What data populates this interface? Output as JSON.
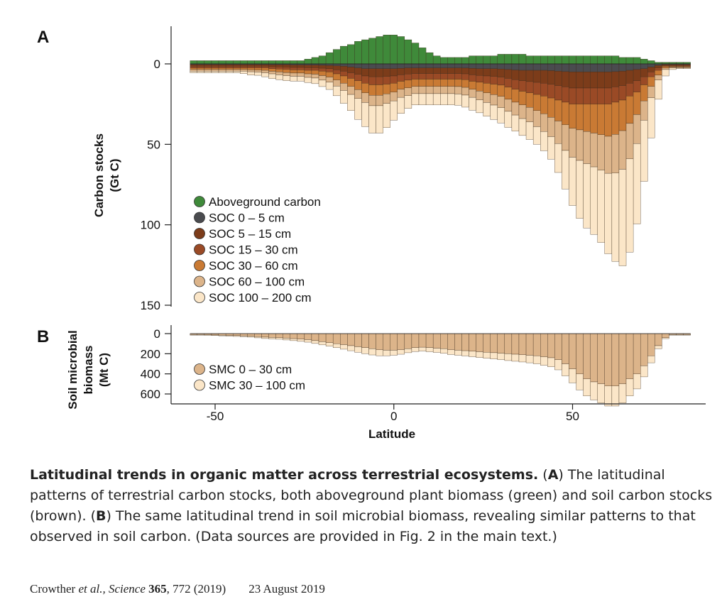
{
  "chart_data": [
    {
      "panel": "A",
      "type": "area",
      "ylabel_lines": [
        "Carbon stocks",
        "(Gt C)"
      ],
      "yticks": [
        0,
        50,
        100,
        150
      ],
      "ylim": [
        -22,
        150
      ],
      "xlim": [
        -62,
        88
      ],
      "stacking": "aboveground plotted upward from 0; soil layers stacked downward from 0, values in Gt C per latitude band",
      "x": [
        -56,
        -54,
        -52,
        -50,
        -48,
        -46,
        -44,
        -42,
        -40,
        -38,
        -36,
        -34,
        -32,
        -30,
        -28,
        -26,
        -24,
        -22,
        -20,
        -18,
        -16,
        -14,
        -12,
        -10,
        -8,
        -6,
        -4,
        -2,
        0,
        2,
        4,
        6,
        8,
        10,
        12,
        14,
        16,
        18,
        20,
        22,
        24,
        26,
        28,
        30,
        32,
        34,
        36,
        38,
        40,
        42,
        44,
        46,
        48,
        50,
        52,
        54,
        56,
        58,
        60,
        62,
        64,
        66,
        68,
        70,
        72,
        74,
        76,
        78,
        80,
        82
      ],
      "series": [
        {
          "name": "Aboveground carbon",
          "color": "#3f8a3a",
          "direction": "up",
          "values": [
            2,
            2,
            2,
            2,
            2,
            2,
            2,
            2,
            2,
            2,
            2,
            2,
            2,
            2,
            2,
            2,
            3,
            4,
            5,
            7,
            9,
            11,
            12,
            14,
            15,
            16,
            17,
            18,
            18,
            17,
            15,
            13,
            10,
            7,
            5,
            4,
            4,
            4,
            4,
            5,
            5,
            5,
            5,
            6,
            6,
            6,
            6,
            5,
            5,
            5,
            5,
            5,
            5,
            5,
            5,
            5,
            5,
            5,
            5,
            5,
            4,
            4,
            4,
            3,
            2,
            1,
            1,
            1,
            1,
            1
          ]
        },
        {
          "name": "SOC 0 – 5 cm",
          "color": "#4a4b4f",
          "direction": "down",
          "values": [
            0.5,
            0.5,
            0.5,
            0.5,
            0.5,
            0.5,
            0.5,
            0.5,
            0.5,
            0.5,
            0.5,
            0.6,
            0.6,
            0.6,
            0.7,
            0.7,
            0.8,
            0.8,
            0.9,
            1,
            1.2,
            1.5,
            2,
            2.5,
            3,
            3,
            3,
            3,
            3,
            2.8,
            2.5,
            2.5,
            2.5,
            2.5,
            2.5,
            2.5,
            2.5,
            2.5,
            2.6,
            2.8,
            3,
            3,
            3,
            3.2,
            3.5,
            3.8,
            4,
            4,
            4,
            4,
            4.2,
            4.5,
            4.8,
            5,
            5,
            5,
            5,
            5,
            5,
            4.8,
            4.5,
            4,
            3.5,
            3,
            2,
            1,
            0.5,
            0.5,
            0.5,
            0.5
          ]
        },
        {
          "name": "SOC 5 – 15 cm",
          "color": "#7c3c1a",
          "direction": "down",
          "values": [
            1,
            1,
            1,
            1,
            1,
            1,
            1,
            1,
            1,
            1,
            1,
            1.2,
            1.3,
            1.4,
            1.5,
            1.5,
            1.6,
            1.6,
            1.8,
            2,
            2.5,
            3,
            3.5,
            4,
            4.5,
            5,
            5,
            4.8,
            4.5,
            4,
            3.8,
            3.5,
            3.5,
            3.5,
            3.5,
            3.5,
            3.5,
            3.5,
            3.6,
            4,
            4.2,
            4.5,
            4.8,
            5,
            5.5,
            6,
            6.5,
            7,
            7.5,
            8,
            8.5,
            9,
            9.5,
            10,
            10,
            10,
            10,
            10,
            10,
            9.5,
            9,
            8,
            7,
            5,
            3,
            1.5,
            0.5,
            0.5,
            0.5,
            0.5
          ]
        },
        {
          "name": "SOC 15 – 30 cm",
          "color": "#9a4a26",
          "direction": "down",
          "values": [
            1,
            1,
            1,
            1,
            1,
            1,
            1,
            1,
            1,
            1,
            1,
            1.2,
            1.3,
            1.4,
            1.5,
            1.5,
            1.6,
            1.6,
            1.8,
            2,
            2.5,
            3,
            3.5,
            4,
            4.5,
            5,
            5,
            4.8,
            4.5,
            4,
            3.8,
            3.5,
            3.5,
            3.5,
            3.5,
            3.5,
            3.5,
            3.5,
            3.6,
            4,
            4.2,
            4.5,
            4.8,
            5,
            5.5,
            6,
            6.5,
            7,
            7.5,
            8,
            8.5,
            9,
            9.5,
            10,
            10,
            10,
            10,
            10,
            10,
            9.5,
            9,
            8,
            7,
            5,
            3,
            1.5,
            0.5,
            0.5,
            0.5,
            0.5
          ]
        },
        {
          "name": "SOC 30 – 60 cm",
          "color": "#c97a34",
          "direction": "down",
          "values": [
            1,
            1,
            1,
            1,
            1,
            1,
            1,
            1,
            1.2,
            1.3,
            1.5,
            1.6,
            1.8,
            2,
            2,
            2,
            2.2,
            2.4,
            2.8,
            3.2,
            3.8,
            4.5,
            5,
            5.5,
            6,
            6.5,
            6.5,
            6,
            5.5,
            5,
            4.8,
            4.5,
            4.5,
            4.5,
            4.5,
            4.5,
            4.5,
            4.6,
            4.8,
            5,
            5.5,
            6,
            6.5,
            7,
            7.5,
            8,
            8.5,
            9,
            10,
            11,
            12,
            13,
            14,
            15,
            16,
            17,
            18,
            19,
            20,
            20,
            19,
            17,
            14,
            10,
            6,
            3,
            1,
            0.5,
            0.5,
            0.5
          ]
        },
        {
          "name": "SOC 60 – 100 cm",
          "color": "#dcb48a",
          "direction": "down",
          "values": [
            1,
            1,
            1,
            1,
            1,
            1,
            1,
            1,
            1.2,
            1.3,
            1.5,
            1.6,
            1.8,
            2,
            2,
            2,
            2.2,
            2.4,
            2.8,
            3.2,
            3.8,
            4.5,
            5,
            5.5,
            6,
            6.5,
            6.5,
            6,
            5.5,
            5,
            4.8,
            4.5,
            4.5,
            4.5,
            4.5,
            4.5,
            4.5,
            4.6,
            4.8,
            5,
            5.5,
            6,
            6.5,
            7,
            7.5,
            8,
            8.5,
            9,
            10,
            11,
            12,
            14,
            16,
            18,
            19,
            20,
            21,
            22,
            23,
            24,
            24,
            22,
            18,
            12,
            7,
            3,
            1,
            0.5,
            0.5,
            0.5
          ]
        },
        {
          "name": "SOC 100 – 200 cm",
          "color": "#fbe6c8",
          "direction": "down",
          "values": [
            1,
            1,
            1,
            1,
            1,
            1,
            1,
            1.5,
            2,
            2,
            2.5,
            3,
            3,
            3,
            3,
            3,
            3.2,
            3.5,
            4,
            4.5,
            6,
            8,
            10,
            13,
            15,
            17,
            17,
            15,
            12,
            10,
            8,
            7,
            7,
            7,
            7,
            7,
            7,
            7,
            7.5,
            8,
            8,
            8.5,
            9,
            9.5,
            10,
            10,
            10.5,
            11,
            11,
            12,
            14,
            18,
            24,
            30,
            36,
            40,
            42,
            45,
            50,
            55,
            60,
            58,
            50,
            38,
            25,
            12,
            4,
            1,
            0.5,
            0.5
          ]
        }
      ],
      "legend": {
        "placement": "lower-left",
        "entries": [
          "Aboveground carbon",
          "SOC 0 – 5 cm",
          "SOC 5 – 15 cm",
          "SOC 15 – 30 cm",
          "SOC 30 – 60 cm",
          "SOC 60 – 100 cm",
          "SOC 100 – 200 cm"
        ]
      }
    },
    {
      "panel": "B",
      "type": "area",
      "ylabel_lines": [
        "Soil microbial",
        "biomass",
        "(Mt C)"
      ],
      "yticks": [
        0,
        200,
        400,
        600
      ],
      "ylim": [
        -20,
        700
      ],
      "xlim": [
        -62,
        88
      ],
      "xticks": [
        -50,
        0,
        50
      ],
      "xlabel": "Latitude",
      "stacking": "layers stacked downward from 0, values in Mt C per latitude band",
      "x": [
        -56,
        -54,
        -52,
        -50,
        -48,
        -46,
        -44,
        -42,
        -40,
        -38,
        -36,
        -34,
        -32,
        -30,
        -28,
        -26,
        -24,
        -22,
        -20,
        -18,
        -16,
        -14,
        -12,
        -10,
        -8,
        -6,
        -4,
        -2,
        0,
        2,
        4,
        6,
        8,
        10,
        12,
        14,
        16,
        18,
        20,
        22,
        24,
        26,
        28,
        30,
        32,
        34,
        36,
        38,
        40,
        42,
        44,
        46,
        48,
        50,
        52,
        54,
        56,
        58,
        60,
        62,
        64,
        66,
        68,
        70,
        72,
        74,
        76,
        78,
        80,
        82
      ],
      "series": [
        {
          "name": "SMC 0 – 30 cm",
          "color": "#dcb48a",
          "direction": "down",
          "values": [
            10,
            10,
            12,
            14,
            16,
            18,
            20,
            22,
            25,
            30,
            35,
            38,
            40,
            45,
            50,
            55,
            60,
            70,
            80,
            90,
            100,
            110,
            120,
            130,
            140,
            150,
            160,
            165,
            165,
            160,
            150,
            140,
            135,
            140,
            145,
            150,
            160,
            165,
            170,
            175,
            180,
            185,
            190,
            195,
            200,
            205,
            210,
            215,
            220,
            230,
            240,
            260,
            300,
            350,
            400,
            450,
            480,
            500,
            520,
            520,
            500,
            450,
            400,
            320,
            220,
            120,
            40,
            10,
            10,
            10
          ]
        },
        {
          "name": "SMC 30 – 100 cm",
          "color": "#fbe6c8",
          "direction": "down",
          "values": [
            5,
            5,
            5,
            6,
            6,
            7,
            8,
            9,
            10,
            12,
            14,
            15,
            16,
            18,
            20,
            22,
            25,
            28,
            32,
            35,
            40,
            45,
            50,
            55,
            60,
            62,
            60,
            55,
            50,
            45,
            40,
            38,
            38,
            40,
            42,
            45,
            48,
            50,
            52,
            55,
            58,
            60,
            62,
            65,
            68,
            70,
            72,
            75,
            80,
            85,
            90,
            100,
            120,
            140,
            160,
            170,
            180,
            190,
            200,
            200,
            190,
            170,
            150,
            110,
            70,
            30,
            10,
            5,
            5,
            5
          ]
        }
      ],
      "legend": {
        "placement": "lower-left",
        "entries": [
          "SMC 0 – 30 cm",
          "SMC 30 – 100 cm"
        ]
      }
    }
  ],
  "caption": {
    "title": "Latitudinal trends in organic matter across terrestrial ecosystems.",
    "part_a_open": " (",
    "letter_a": "A",
    "part_a_text": ") The latitudinal patterns of terrestrial carbon stocks, both aboveground plant biomass (green) and soil carbon stocks (brown). (",
    "letter_b": "B",
    "part_b_text": ") The same latitudinal trend in soil microbial biomass, revealing similar patterns to that observed in soil carbon. (Data sources are provided in Fig. 2 in the main text.)"
  },
  "citation": {
    "author": "Crowther ",
    "etal": "et al.",
    "journal": ", Science ",
    "volume": "365",
    "pages": ", 772 (2019)",
    "date": "23 August 2019"
  }
}
